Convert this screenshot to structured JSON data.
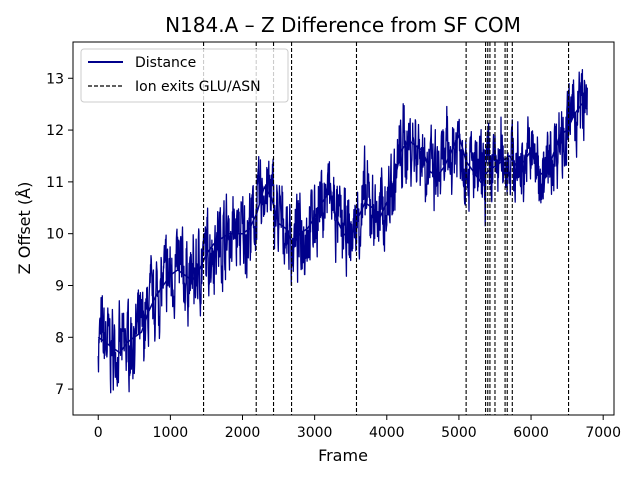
{
  "chart_data": {
    "type": "line",
    "title": "N184.A – Z Difference from SF COM",
    "xlabel": "Frame",
    "ylabel": "Z Offset (Å)",
    "xlim": [
      -350,
      7150
    ],
    "ylim": [
      6.5,
      13.7
    ],
    "xticks": [
      0,
      1000,
      2000,
      3000,
      4000,
      5000,
      6000,
      7000
    ],
    "yticks": [
      7,
      8,
      9,
      10,
      11,
      12,
      13
    ],
    "grid": false,
    "legend_position": "upper-left",
    "colors": {
      "distance": "#00008b",
      "exits": "#000000"
    },
    "series": [
      {
        "name": "Distance",
        "style": "solid",
        "x": [
          0,
          100,
          200,
          300,
          400,
          500,
          600,
          700,
          800,
          900,
          1000,
          1100,
          1200,
          1300,
          1400,
          1500,
          1600,
          1700,
          1800,
          1900,
          2000,
          2100,
          2200,
          2300,
          2400,
          2500,
          2600,
          2700,
          2800,
          2900,
          3000,
          3100,
          3200,
          3300,
          3400,
          3500,
          3600,
          3700,
          3800,
          3900,
          4000,
          4100,
          4200,
          4300,
          4400,
          4500,
          4600,
          4700,
          4800,
          4900,
          5000,
          5100,
          5200,
          5300,
          5400,
          5500,
          5600,
          5700,
          5800,
          5900,
          6000,
          6100,
          6200,
          6300,
          6400,
          6500,
          6600,
          6700,
          6780
        ],
        "y": [
          8.0,
          7.9,
          7.8,
          7.7,
          7.9,
          8.0,
          8.1,
          8.5,
          8.8,
          9.0,
          9.2,
          9.3,
          9.2,
          9.1,
          9.3,
          9.6,
          9.8,
          9.9,
          10.0,
          10.0,
          10.0,
          10.1,
          10.4,
          10.9,
          10.7,
          10.2,
          10.1,
          9.8,
          10.0,
          10.1,
          10.3,
          10.6,
          10.8,
          10.3,
          10.0,
          9.9,
          10.3,
          10.6,
          10.5,
          10.3,
          10.6,
          11.0,
          11.6,
          11.8,
          11.7,
          11.6,
          11.2,
          11.1,
          11.3,
          11.6,
          11.9,
          11.4,
          11.2,
          11.0,
          11.2,
          11.3,
          11.4,
          11.5,
          11.3,
          11.4,
          11.6,
          11.2,
          11.1,
          11.5,
          11.9,
          12.0,
          12.3,
          12.5,
          12.4
        ]
      }
    ],
    "vlines": {
      "name": "Ion exits GLU/ASN",
      "style": "dashed",
      "x": [
        1460,
        2190,
        2430,
        2680,
        3580,
        5100,
        5370,
        5400,
        5430,
        5500,
        5640,
        5670,
        5740,
        6520
      ]
    }
  }
}
